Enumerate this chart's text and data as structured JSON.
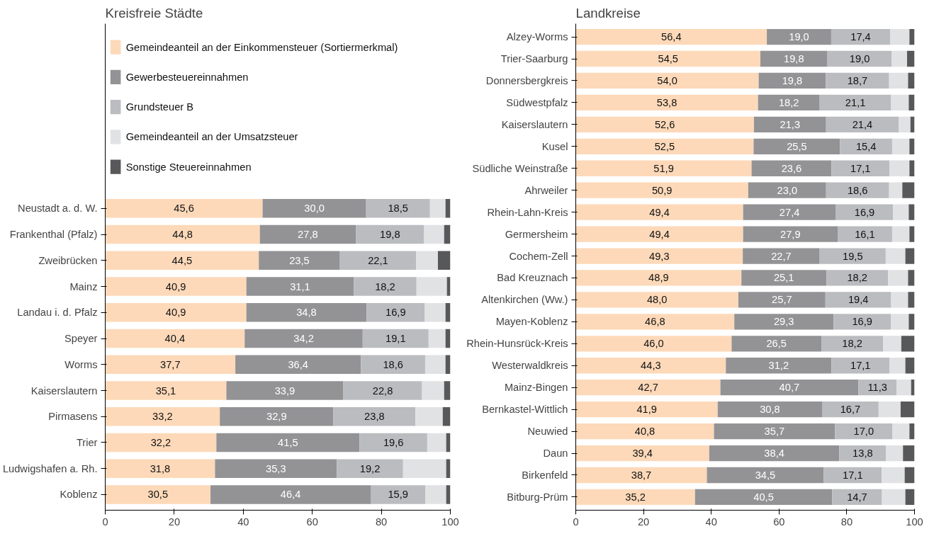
{
  "chart_data": [
    {
      "type": "bar",
      "orientation": "horizontal",
      "stacked": true,
      "title": "Kreisfreie Städte",
      "legend": "top",
      "xlim": [
        0,
        100
      ],
      "xticks": [
        0,
        20,
        40,
        60,
        80,
        100
      ],
      "grid": false,
      "categories": [
        "Neustadt a. d. W.",
        "Frankenthal (Pfalz)",
        "Zweibrücken",
        "Mainz",
        "Landau i. d. Pfalz",
        "Speyer",
        "Worms",
        "Kaiserslautern",
        "Pirmasens",
        "Trier",
        "Ludwigshafen a. Rh.",
        "Koblenz"
      ],
      "series": [
        {
          "name": "Gemeindeanteil an der Einkommensteuer (Sortiermerkmal)",
          "color": "#fdd9b9",
          "values": [
            45.6,
            44.8,
            44.5,
            40.9,
            40.9,
            40.4,
            37.7,
            35.1,
            33.2,
            32.2,
            31.8,
            30.5
          ],
          "value_labels": [
            "45,6",
            "44,8",
            "44,5",
            "40,9",
            "40,9",
            "40,4",
            "37,7",
            "35,1",
            "33,2",
            "32,2",
            "31,8",
            "30,5"
          ]
        },
        {
          "name": "Gewerbesteuereinnahmen",
          "color": "#939396",
          "values": [
            30.0,
            27.8,
            23.5,
            31.1,
            34.8,
            34.2,
            36.4,
            33.9,
            32.9,
            41.5,
            35.3,
            46.4
          ],
          "value_labels": [
            "30,0",
            "27,8",
            "23,5",
            "31,1",
            "34,8",
            "34,2",
            "36,4",
            "33,9",
            "32,9",
            "41,5",
            "35,3",
            "46,4"
          ]
        },
        {
          "name": "Grundsteuer B",
          "color": "#bbbcc0",
          "values": [
            18.5,
            19.8,
            22.1,
            18.2,
            16.9,
            19.1,
            18.6,
            22.8,
            23.8,
            19.6,
            19.2,
            15.9
          ],
          "value_labels": [
            "18,5",
            "19,8",
            "22,1",
            "18,2",
            "16,9",
            "19,1",
            "18,6",
            "22,8",
            "23,8",
            "19,6",
            "19,2",
            "15,9"
          ]
        },
        {
          "name": "Gemeindeanteil an der Umsatzsteuer",
          "color": "#e1e2e4",
          "values": [
            4.5,
            5.8,
            6.3,
            8.8,
            6.0,
            4.9,
            5.9,
            6.4,
            7.9,
            5.5,
            12.5,
            6.0
          ]
        },
        {
          "name": "Sonstige Steuereinnahmen",
          "color": "#58585a",
          "values": [
            1.4,
            1.8,
            3.6,
            1.0,
            1.4,
            1.4,
            1.4,
            1.8,
            2.2,
            1.2,
            1.2,
            1.2
          ]
        }
      ]
    },
    {
      "type": "bar",
      "orientation": "horizontal",
      "stacked": true,
      "title": "Landkreise",
      "xlim": [
        0,
        100
      ],
      "xticks": [
        0,
        20,
        40,
        60,
        80,
        100
      ],
      "grid": false,
      "categories": [
        "Alzey-Worms",
        "Trier-Saarburg",
        "Donnersbergkreis",
        "Südwestpfalz",
        "Kaiserslautern",
        "Kusel",
        "Südliche Weinstraße",
        "Ahrweiler",
        "Rhein-Lahn-Kreis",
        "Germersheim",
        "Cochem-Zell",
        "Bad Kreuznach",
        "Altenkirchen (Ww.)",
        "Mayen-Koblenz",
        "Rhein-Hunsrück-Kreis",
        "Westerwaldkreis",
        "Mainz-Bingen",
        "Bernkastel-Wittlich",
        "Neuwied",
        "Daun",
        "Birkenfeld",
        "Bitburg-Prüm"
      ],
      "series": [
        {
          "color": "#fdd9b9",
          "values": [
            56.4,
            54.5,
            54.0,
            53.8,
            52.6,
            52.5,
            51.9,
            50.9,
            49.4,
            49.4,
            49.3,
            48.9,
            48.0,
            46.8,
            46.0,
            44.3,
            42.7,
            41.9,
            40.8,
            39.4,
            38.7,
            35.2
          ],
          "value_labels": [
            "56,4",
            "54,5",
            "54,0",
            "53,8",
            "52,6",
            "52,5",
            "51,9",
            "50,9",
            "49,4",
            "49,4",
            "49,3",
            "48,9",
            "48,0",
            "46,8",
            "46,0",
            "44,3",
            "42,7",
            "41,9",
            "40,8",
            "39,4",
            "38,7",
            "35,2"
          ]
        },
        {
          "color": "#939396",
          "values": [
            19.0,
            19.8,
            19.8,
            18.2,
            21.3,
            25.5,
            23.6,
            23.0,
            27.4,
            27.9,
            22.7,
            25.1,
            25.7,
            29.3,
            26.5,
            31.2,
            40.7,
            30.8,
            35.7,
            38.4,
            34.5,
            40.5
          ],
          "value_labels": [
            "19,0",
            "19,8",
            "19,8",
            "18,2",
            "21,3",
            "25,5",
            "23,6",
            "23,0",
            "27,4",
            "27,9",
            "22,7",
            "25,1",
            "25,7",
            "29,3",
            "26,5",
            "31,2",
            "40,7",
            "30,8",
            "35,7",
            "38,4",
            "34,5",
            "40,5"
          ]
        },
        {
          "color": "#bbbcc0",
          "values": [
            17.4,
            19.0,
            18.7,
            21.1,
            21.4,
            15.4,
            17.1,
            18.6,
            16.9,
            16.1,
            19.5,
            18.2,
            19.4,
            16.9,
            18.2,
            17.1,
            11.3,
            16.7,
            17.0,
            13.8,
            17.1,
            14.7
          ],
          "value_labels": [
            "17,4",
            "19,0",
            "18,7",
            "21,1",
            "21,4",
            "15,4",
            "17,1",
            "18,6",
            "16,9",
            "16,1",
            "19,5",
            "18,2",
            "19,4",
            "16,9",
            "18,2",
            "17,1",
            "11,3",
            "16,7",
            "17,0",
            "13,8",
            "17,1",
            "14,7"
          ]
        },
        {
          "color": "#e1e2e4",
          "values": [
            5.7,
            4.5,
            5.6,
            5.2,
            3.5,
            5.1,
            5.9,
            3.9,
            4.6,
            5.1,
            5.8,
            5.9,
            5.0,
            5.3,
            5.4,
            4.7,
            4.3,
            6.5,
            5.0,
            5.0,
            6.8,
            6.9
          ]
        },
        {
          "color": "#58585a",
          "values": [
            1.5,
            2.2,
            1.9,
            1.7,
            1.2,
            1.5,
            1.5,
            3.6,
            1.7,
            1.5,
            2.7,
            1.9,
            1.9,
            1.7,
            3.9,
            2.7,
            1.0,
            4.1,
            1.5,
            3.4,
            2.9,
            2.7
          ]
        }
      ]
    }
  ]
}
